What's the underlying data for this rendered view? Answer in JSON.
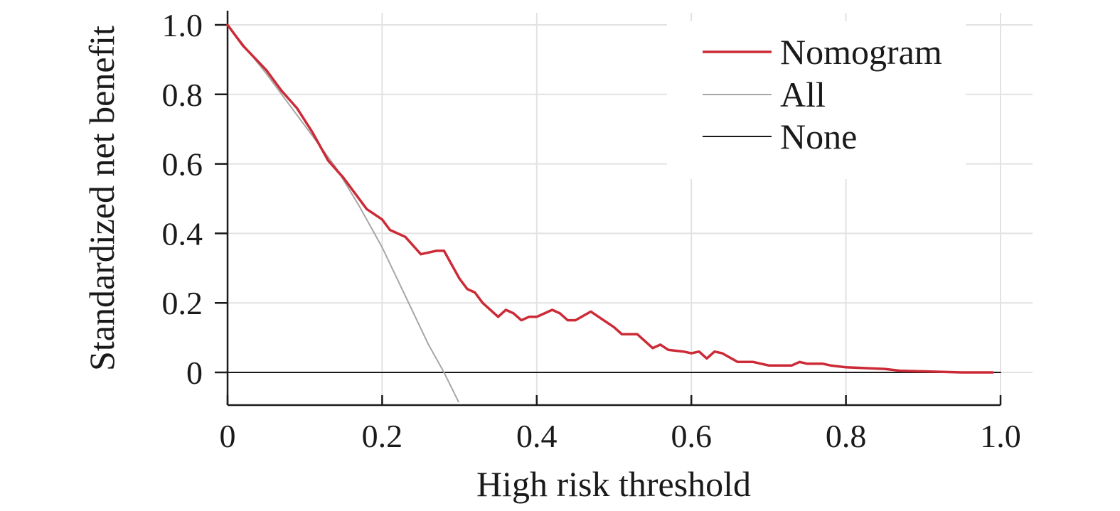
{
  "chart_data": {
    "type": "line",
    "title": "",
    "xlabel": "High risk threshold",
    "ylabel": "Standardized net benefit",
    "xlim": [
      0,
      1.0
    ],
    "ylim": [
      -0.1,
      1.0
    ],
    "x_ticks": [
      0,
      0.2,
      0.4,
      0.6,
      0.8,
      1.0
    ],
    "x_tick_labels": [
      "0",
      "0.2",
      "0.4",
      "0.6",
      "0.8",
      "1.0"
    ],
    "y_ticks": [
      0,
      0.2,
      0.4,
      0.6,
      0.8,
      1.0
    ],
    "y_tick_labels": [
      "0",
      "0.2",
      "0.4",
      "0.6",
      "0.8",
      "1.0"
    ],
    "grid": true,
    "legend_position": "top-right",
    "series": [
      {
        "name": "Nomogram",
        "color": "#cc2a36",
        "x": [
          0,
          0.02,
          0.05,
          0.07,
          0.09,
          0.11,
          0.13,
          0.15,
          0.17,
          0.18,
          0.2,
          0.21,
          0.23,
          0.25,
          0.27,
          0.28,
          0.3,
          0.31,
          0.32,
          0.33,
          0.35,
          0.36,
          0.37,
          0.38,
          0.39,
          0.4,
          0.42,
          0.43,
          0.44,
          0.45,
          0.47,
          0.48,
          0.5,
          0.51,
          0.53,
          0.55,
          0.56,
          0.57,
          0.59,
          0.6,
          0.61,
          0.62,
          0.63,
          0.64,
          0.66,
          0.68,
          0.7,
          0.72,
          0.73,
          0.74,
          0.75,
          0.77,
          0.78,
          0.8,
          0.85,
          0.87,
          0.9,
          0.95,
          0.99
        ],
        "y": [
          1.0,
          0.94,
          0.87,
          0.81,
          0.76,
          0.69,
          0.61,
          0.56,
          0.5,
          0.47,
          0.44,
          0.41,
          0.39,
          0.34,
          0.35,
          0.35,
          0.27,
          0.24,
          0.23,
          0.2,
          0.16,
          0.18,
          0.17,
          0.15,
          0.16,
          0.16,
          0.18,
          0.17,
          0.15,
          0.15,
          0.175,
          0.16,
          0.13,
          0.11,
          0.11,
          0.07,
          0.08,
          0.065,
          0.06,
          0.055,
          0.06,
          0.04,
          0.06,
          0.055,
          0.03,
          0.03,
          0.02,
          0.02,
          0.02,
          0.03,
          0.025,
          0.025,
          0.02,
          0.015,
          0.01,
          0.005,
          0.003,
          0.0,
          0.0
        ]
      },
      {
        "name": "All",
        "color": "#a6a6a6",
        "x": [
          0,
          0.05,
          0.1,
          0.14,
          0.17,
          0.2,
          0.23,
          0.26,
          0.28,
          0.3
        ],
        "y": [
          1.0,
          0.86,
          0.71,
          0.59,
          0.48,
          0.36,
          0.22,
          0.08,
          0.0,
          -0.09
        ]
      },
      {
        "name": "None",
        "color": "#1a1a1a",
        "x": [
          0,
          1.0
        ],
        "y": [
          0,
          0
        ]
      }
    ]
  }
}
